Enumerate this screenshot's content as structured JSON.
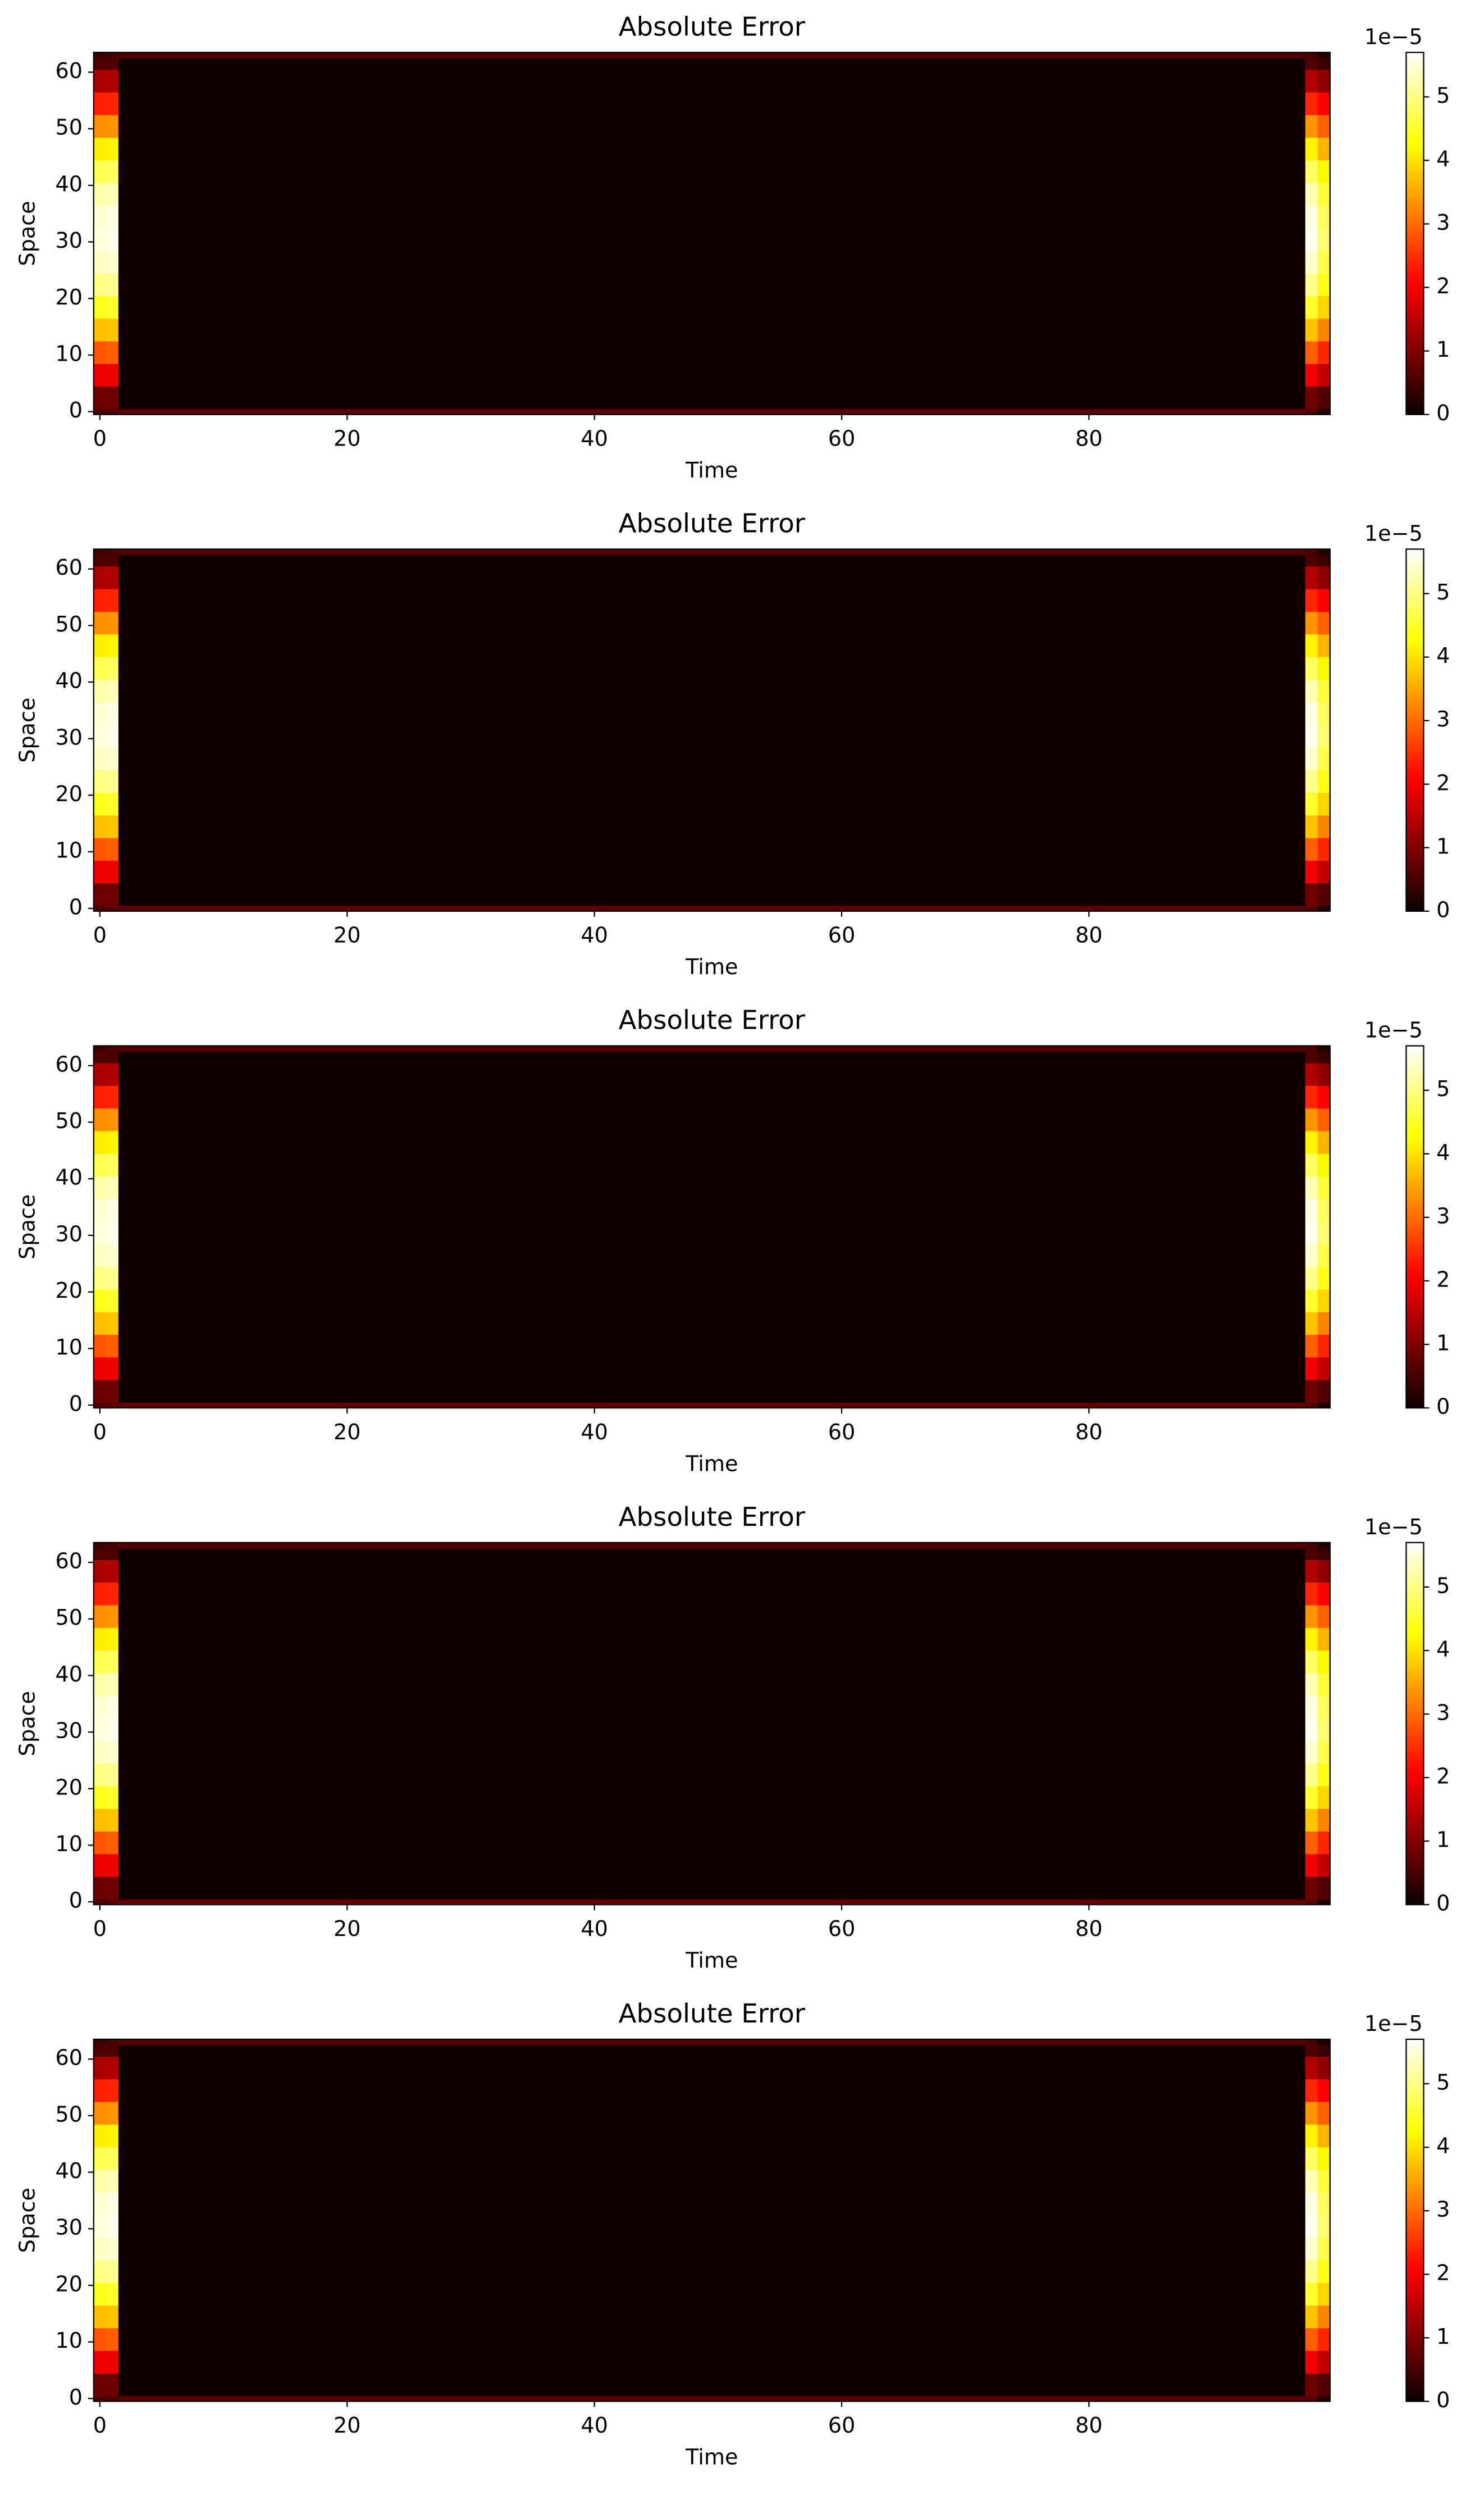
{
  "chart_data": [
    {
      "type": "heatmap",
      "title": "Absolute Error",
      "xlabel": "Time",
      "ylabel": "Space",
      "colormap": "hot",
      "x_edges": [
        -0.5,
        0.5,
        1.5,
        97.5,
        98.5,
        99.5
      ],
      "y_edges": [
        -0.5,
        0.5,
        4.5,
        8.5,
        12.5,
        16.5,
        20.5,
        24.5,
        28.5,
        32.5,
        36.5,
        40.5,
        44.5,
        48.5,
        52.5,
        56.5,
        60.5,
        62.5,
        63.5
      ],
      "values": [
        [
          5e-06,
          6e-06,
          7e-06,
          6e-06,
          2e-06
        ],
        [
          8e-06,
          8.2e-06,
          5e-07,
          8.2e-06,
          6e-06
        ],
        [
          1.85e-05,
          1.89e-05,
          5e-07,
          1.89e-05,
          1.5e-05
        ],
        [
          2.8e-05,
          2.88e-05,
          5e-07,
          2.88e-05,
          2.4e-05
        ],
        [
          3.7e-05,
          3.76e-05,
          5e-07,
          3.76e-05,
          3.2e-05
        ],
        [
          4.4e-05,
          4.5e-05,
          5e-07,
          4.5e-05,
          3.9e-05
        ],
        [
          5e-05,
          5.06e-05,
          5e-07,
          5.06e-05,
          4.4e-05
        ],
        [
          5.35e-05,
          5.43e-05,
          5e-07,
          5.43e-05,
          4.7e-05
        ],
        [
          5.5e-05,
          5.59e-05,
          5e-07,
          5.59e-05,
          4.9e-05
        ],
        [
          5.45e-05,
          5.54e-05,
          5e-07,
          5.54e-05,
          4.8e-05
        ],
        [
          5.2e-05,
          5.28e-05,
          5e-07,
          5.28e-05,
          4.6e-05
        ],
        [
          4.7e-05,
          4.8e-05,
          5e-07,
          4.8e-05,
          4.2e-05
        ],
        [
          4.1e-05,
          4.15e-05,
          5e-07,
          4.15e-05,
          3.6e-05
        ],
        [
          3.3e-05,
          3.34e-05,
          5e-07,
          3.34e-05,
          2.9e-05
        ],
        [
          2.35e-05,
          2.4e-05,
          5e-07,
          2.4e-05,
          2e-05
        ],
        [
          1.3e-05,
          1.36e-05,
          5e-07,
          1.36e-05,
          1.1e-05
        ],
        [
          5.5e-06,
          5.5e-06,
          5e-07,
          5.5e-06,
          4e-06
        ],
        [
          4e-06,
          5e-06,
          6e-06,
          5e-06,
          2e-06
        ]
      ],
      "xlim": [
        -0.5,
        99.5
      ],
      "ylim": [
        -0.5,
        63.5
      ],
      "xticks": [
        0,
        20,
        40,
        60,
        80
      ],
      "yticks": [
        0,
        10,
        20,
        30,
        40,
        50,
        60
      ],
      "colorbar_lim": [
        0,
        5.7e-05
      ],
      "colorbar_ticks": [
        0,
        {
          "value": 1e-05,
          "label": "1"
        },
        {
          "value": 2e-05,
          "label": "2"
        },
        {
          "value": 3e-05,
          "label": "3"
        },
        {
          "value": 4e-05,
          "label": "4"
        },
        {
          "value": 5e-05,
          "label": "5"
        }
      ],
      "colorbar_offset": "1e−5"
    },
    {
      "type": "heatmap",
      "title": "Absolute Error",
      "xlabel": "Time",
      "ylabel": "Space",
      "colormap": "hot",
      "x_edges": [
        -0.5,
        0.5,
        1.5,
        97.5,
        98.5,
        99.5
      ],
      "y_edges": [
        -0.5,
        0.5,
        4.5,
        8.5,
        12.5,
        16.5,
        20.5,
        24.5,
        28.5,
        32.5,
        36.5,
        40.5,
        44.5,
        48.5,
        52.5,
        56.5,
        60.5,
        62.5,
        63.5
      ],
      "values": [
        [
          5e-06,
          6e-06,
          7e-06,
          6e-06,
          2e-06
        ],
        [
          8e-06,
          8.2e-06,
          5e-07,
          8.2e-06,
          6e-06
        ],
        [
          1.85e-05,
          1.89e-05,
          5e-07,
          1.89e-05,
          1.5e-05
        ],
        [
          2.8e-05,
          2.88e-05,
          5e-07,
          2.88e-05,
          2.4e-05
        ],
        [
          3.7e-05,
          3.76e-05,
          5e-07,
          3.76e-05,
          3.2e-05
        ],
        [
          4.4e-05,
          4.5e-05,
          5e-07,
          4.5e-05,
          3.9e-05
        ],
        [
          5e-05,
          5.06e-05,
          5e-07,
          5.06e-05,
          4.4e-05
        ],
        [
          5.35e-05,
          5.43e-05,
          5e-07,
          5.43e-05,
          4.7e-05
        ],
        [
          5.5e-05,
          5.59e-05,
          5e-07,
          5.59e-05,
          4.9e-05
        ],
        [
          5.45e-05,
          5.54e-05,
          5e-07,
          5.54e-05,
          4.8e-05
        ],
        [
          5.2e-05,
          5.28e-05,
          5e-07,
          5.28e-05,
          4.6e-05
        ],
        [
          4.7e-05,
          4.8e-05,
          5e-07,
          4.8e-05,
          4.2e-05
        ],
        [
          4.1e-05,
          4.15e-05,
          5e-07,
          4.15e-05,
          3.6e-05
        ],
        [
          3.3e-05,
          3.34e-05,
          5e-07,
          3.34e-05,
          2.9e-05
        ],
        [
          2.35e-05,
          2.4e-05,
          5e-07,
          2.4e-05,
          2e-05
        ],
        [
          1.3e-05,
          1.36e-05,
          5e-07,
          1.36e-05,
          1.1e-05
        ],
        [
          5.5e-06,
          5.5e-06,
          5e-07,
          5.5e-06,
          4e-06
        ],
        [
          4e-06,
          5e-06,
          6e-06,
          5e-06,
          2e-06
        ]
      ],
      "xlim": [
        -0.5,
        99.5
      ],
      "ylim": [
        -0.5,
        63.5
      ],
      "xticks": [
        0,
        20,
        40,
        60,
        80
      ],
      "yticks": [
        0,
        10,
        20,
        30,
        40,
        50,
        60
      ],
      "colorbar_lim": [
        0,
        5.7e-05
      ],
      "colorbar_ticks": [
        0,
        {
          "value": 1e-05,
          "label": "1"
        },
        {
          "value": 2e-05,
          "label": "2"
        },
        {
          "value": 3e-05,
          "label": "3"
        },
        {
          "value": 4e-05,
          "label": "4"
        },
        {
          "value": 5e-05,
          "label": "5"
        }
      ],
      "colorbar_offset": "1e−5"
    },
    {
      "type": "heatmap",
      "title": "Absolute Error",
      "xlabel": "Time",
      "ylabel": "Space",
      "colormap": "hot",
      "x_edges": [
        -0.5,
        0.5,
        1.5,
        97.5,
        98.5,
        99.5
      ],
      "y_edges": [
        -0.5,
        0.5,
        4.5,
        8.5,
        12.5,
        16.5,
        20.5,
        24.5,
        28.5,
        32.5,
        36.5,
        40.5,
        44.5,
        48.5,
        52.5,
        56.5,
        60.5,
        62.5,
        63.5
      ],
      "values": [
        [
          5e-06,
          6e-06,
          7e-06,
          6e-06,
          2e-06
        ],
        [
          8e-06,
          8.2e-06,
          5e-07,
          8.2e-06,
          6e-06
        ],
        [
          1.85e-05,
          1.89e-05,
          5e-07,
          1.89e-05,
          1.5e-05
        ],
        [
          2.8e-05,
          2.88e-05,
          5e-07,
          2.88e-05,
          2.4e-05
        ],
        [
          3.7e-05,
          3.76e-05,
          5e-07,
          3.76e-05,
          3.2e-05
        ],
        [
          4.4e-05,
          4.5e-05,
          5e-07,
          4.5e-05,
          3.9e-05
        ],
        [
          5e-05,
          5.06e-05,
          5e-07,
          5.06e-05,
          4.4e-05
        ],
        [
          5.35e-05,
          5.43e-05,
          5e-07,
          5.43e-05,
          4.7e-05
        ],
        [
          5.5e-05,
          5.59e-05,
          5e-07,
          5.59e-05,
          4.9e-05
        ],
        [
          5.45e-05,
          5.54e-05,
          5e-07,
          5.54e-05,
          4.8e-05
        ],
        [
          5.2e-05,
          5.28e-05,
          5e-07,
          5.28e-05,
          4.6e-05
        ],
        [
          4.7e-05,
          4.8e-05,
          5e-07,
          4.8e-05,
          4.2e-05
        ],
        [
          4.1e-05,
          4.15e-05,
          5e-07,
          4.15e-05,
          3.6e-05
        ],
        [
          3.3e-05,
          3.34e-05,
          5e-07,
          3.34e-05,
          2.9e-05
        ],
        [
          2.35e-05,
          2.4e-05,
          5e-07,
          2.4e-05,
          2e-05
        ],
        [
          1.3e-05,
          1.36e-05,
          5e-07,
          1.36e-05,
          1.1e-05
        ],
        [
          5.5e-06,
          5.5e-06,
          5e-07,
          5.5e-06,
          4e-06
        ],
        [
          4e-06,
          5e-06,
          6e-06,
          5e-06,
          2e-06
        ]
      ],
      "xlim": [
        -0.5,
        99.5
      ],
      "ylim": [
        -0.5,
        63.5
      ],
      "xticks": [
        0,
        20,
        40,
        60,
        80
      ],
      "yticks": [
        0,
        10,
        20,
        30,
        40,
        50,
        60
      ],
      "colorbar_lim": [
        0,
        5.7e-05
      ],
      "colorbar_ticks": [
        0,
        {
          "value": 1e-05,
          "label": "1"
        },
        {
          "value": 2e-05,
          "label": "2"
        },
        {
          "value": 3e-05,
          "label": "3"
        },
        {
          "value": 4e-05,
          "label": "4"
        },
        {
          "value": 5e-05,
          "label": "5"
        }
      ],
      "colorbar_offset": "1e−5"
    },
    {
      "type": "heatmap",
      "title": "Absolute Error",
      "xlabel": "Time",
      "ylabel": "Space",
      "colormap": "hot",
      "x_edges": [
        -0.5,
        0.5,
        1.5,
        97.5,
        98.5,
        99.5
      ],
      "y_edges": [
        -0.5,
        0.5,
        4.5,
        8.5,
        12.5,
        16.5,
        20.5,
        24.5,
        28.5,
        32.5,
        36.5,
        40.5,
        44.5,
        48.5,
        52.5,
        56.5,
        60.5,
        62.5,
        63.5
      ],
      "values": [
        [
          5e-06,
          6e-06,
          7e-06,
          6e-06,
          2e-06
        ],
        [
          8e-06,
          8.2e-06,
          5e-07,
          8.2e-06,
          6e-06
        ],
        [
          1.85e-05,
          1.89e-05,
          5e-07,
          1.89e-05,
          1.5e-05
        ],
        [
          2.8e-05,
          2.88e-05,
          5e-07,
          2.88e-05,
          2.4e-05
        ],
        [
          3.7e-05,
          3.76e-05,
          5e-07,
          3.76e-05,
          3.2e-05
        ],
        [
          4.4e-05,
          4.5e-05,
          5e-07,
          4.5e-05,
          3.9e-05
        ],
        [
          5e-05,
          5.06e-05,
          5e-07,
          5.06e-05,
          4.4e-05
        ],
        [
          5.35e-05,
          5.43e-05,
          5e-07,
          5.43e-05,
          4.7e-05
        ],
        [
          5.5e-05,
          5.59e-05,
          5e-07,
          5.59e-05,
          4.9e-05
        ],
        [
          5.45e-05,
          5.54e-05,
          5e-07,
          5.54e-05,
          4.8e-05
        ],
        [
          5.2e-05,
          5.28e-05,
          5e-07,
          5.28e-05,
          4.6e-05
        ],
        [
          4.7e-05,
          4.8e-05,
          5e-07,
          4.8e-05,
          4.2e-05
        ],
        [
          4.1e-05,
          4.15e-05,
          5e-07,
          4.15e-05,
          3.6e-05
        ],
        [
          3.3e-05,
          3.34e-05,
          5e-07,
          3.34e-05,
          2.9e-05
        ],
        [
          2.35e-05,
          2.4e-05,
          5e-07,
          2.4e-05,
          2e-05
        ],
        [
          1.3e-05,
          1.36e-05,
          5e-07,
          1.36e-05,
          1.1e-05
        ],
        [
          5.5e-06,
          5.5e-06,
          5e-07,
          5.5e-06,
          4e-06
        ],
        [
          4e-06,
          5e-06,
          6e-06,
          5e-06,
          2e-06
        ]
      ],
      "xlim": [
        -0.5,
        99.5
      ],
      "ylim": [
        -0.5,
        63.5
      ],
      "xticks": [
        0,
        20,
        40,
        60,
        80
      ],
      "yticks": [
        0,
        10,
        20,
        30,
        40,
        50,
        60
      ],
      "colorbar_lim": [
        0,
        5.7e-05
      ],
      "colorbar_ticks": [
        0,
        {
          "value": 1e-05,
          "label": "1"
        },
        {
          "value": 2e-05,
          "label": "2"
        },
        {
          "value": 3e-05,
          "label": "3"
        },
        {
          "value": 4e-05,
          "label": "4"
        },
        {
          "value": 5e-05,
          "label": "5"
        }
      ],
      "colorbar_offset": "1e−5"
    },
    {
      "type": "heatmap",
      "title": "Absolute Error",
      "xlabel": "Time",
      "ylabel": "Space",
      "colormap": "hot",
      "x_edges": [
        -0.5,
        0.5,
        1.5,
        97.5,
        98.5,
        99.5
      ],
      "y_edges": [
        -0.5,
        0.5,
        4.5,
        8.5,
        12.5,
        16.5,
        20.5,
        24.5,
        28.5,
        32.5,
        36.5,
        40.5,
        44.5,
        48.5,
        52.5,
        56.5,
        60.5,
        62.5,
        63.5
      ],
      "values": [
        [
          5e-06,
          6e-06,
          7e-06,
          6e-06,
          2e-06
        ],
        [
          8e-06,
          8.2e-06,
          5e-07,
          8.2e-06,
          6e-06
        ],
        [
          1.85e-05,
          1.89e-05,
          5e-07,
          1.89e-05,
          1.5e-05
        ],
        [
          2.8e-05,
          2.88e-05,
          5e-07,
          2.88e-05,
          2.4e-05
        ],
        [
          3.7e-05,
          3.76e-05,
          5e-07,
          3.76e-05,
          3.2e-05
        ],
        [
          4.4e-05,
          4.5e-05,
          5e-07,
          4.5e-05,
          3.9e-05
        ],
        [
          5e-05,
          5.06e-05,
          5e-07,
          5.06e-05,
          4.4e-05
        ],
        [
          5.35e-05,
          5.43e-05,
          5e-07,
          5.43e-05,
          4.7e-05
        ],
        [
          5.5e-05,
          5.59e-05,
          5e-07,
          5.59e-05,
          4.9e-05
        ],
        [
          5.45e-05,
          5.54e-05,
          5e-07,
          5.54e-05,
          4.8e-05
        ],
        [
          5.2e-05,
          5.28e-05,
          5e-07,
          5.28e-05,
          4.6e-05
        ],
        [
          4.7e-05,
          4.8e-05,
          5e-07,
          4.8e-05,
          4.2e-05
        ],
        [
          4.1e-05,
          4.15e-05,
          5e-07,
          4.15e-05,
          3.6e-05
        ],
        [
          3.3e-05,
          3.34e-05,
          5e-07,
          3.34e-05,
          2.9e-05
        ],
        [
          2.35e-05,
          2.4e-05,
          5e-07,
          2.4e-05,
          2e-05
        ],
        [
          1.3e-05,
          1.36e-05,
          5e-07,
          1.36e-05,
          1.1e-05
        ],
        [
          5.5e-06,
          5.5e-06,
          5e-07,
          5.5e-06,
          4e-06
        ],
        [
          4e-06,
          5e-06,
          6e-06,
          5e-06,
          2e-06
        ]
      ],
      "xlim": [
        -0.5,
        99.5
      ],
      "ylim": [
        -0.5,
        63.5
      ],
      "xticks": [
        0,
        20,
        40,
        60,
        80
      ],
      "yticks": [
        0,
        10,
        20,
        30,
        40,
        50,
        60
      ],
      "colorbar_lim": [
        0,
        5.7e-05
      ],
      "colorbar_ticks": [
        0,
        {
          "value": 1e-05,
          "label": "1"
        },
        {
          "value": 2e-05,
          "label": "2"
        },
        {
          "value": 3e-05,
          "label": "3"
        },
        {
          "value": 4e-05,
          "label": "4"
        },
        {
          "value": 5e-05,
          "label": "5"
        }
      ],
      "colorbar_offset": "1e−5"
    }
  ]
}
